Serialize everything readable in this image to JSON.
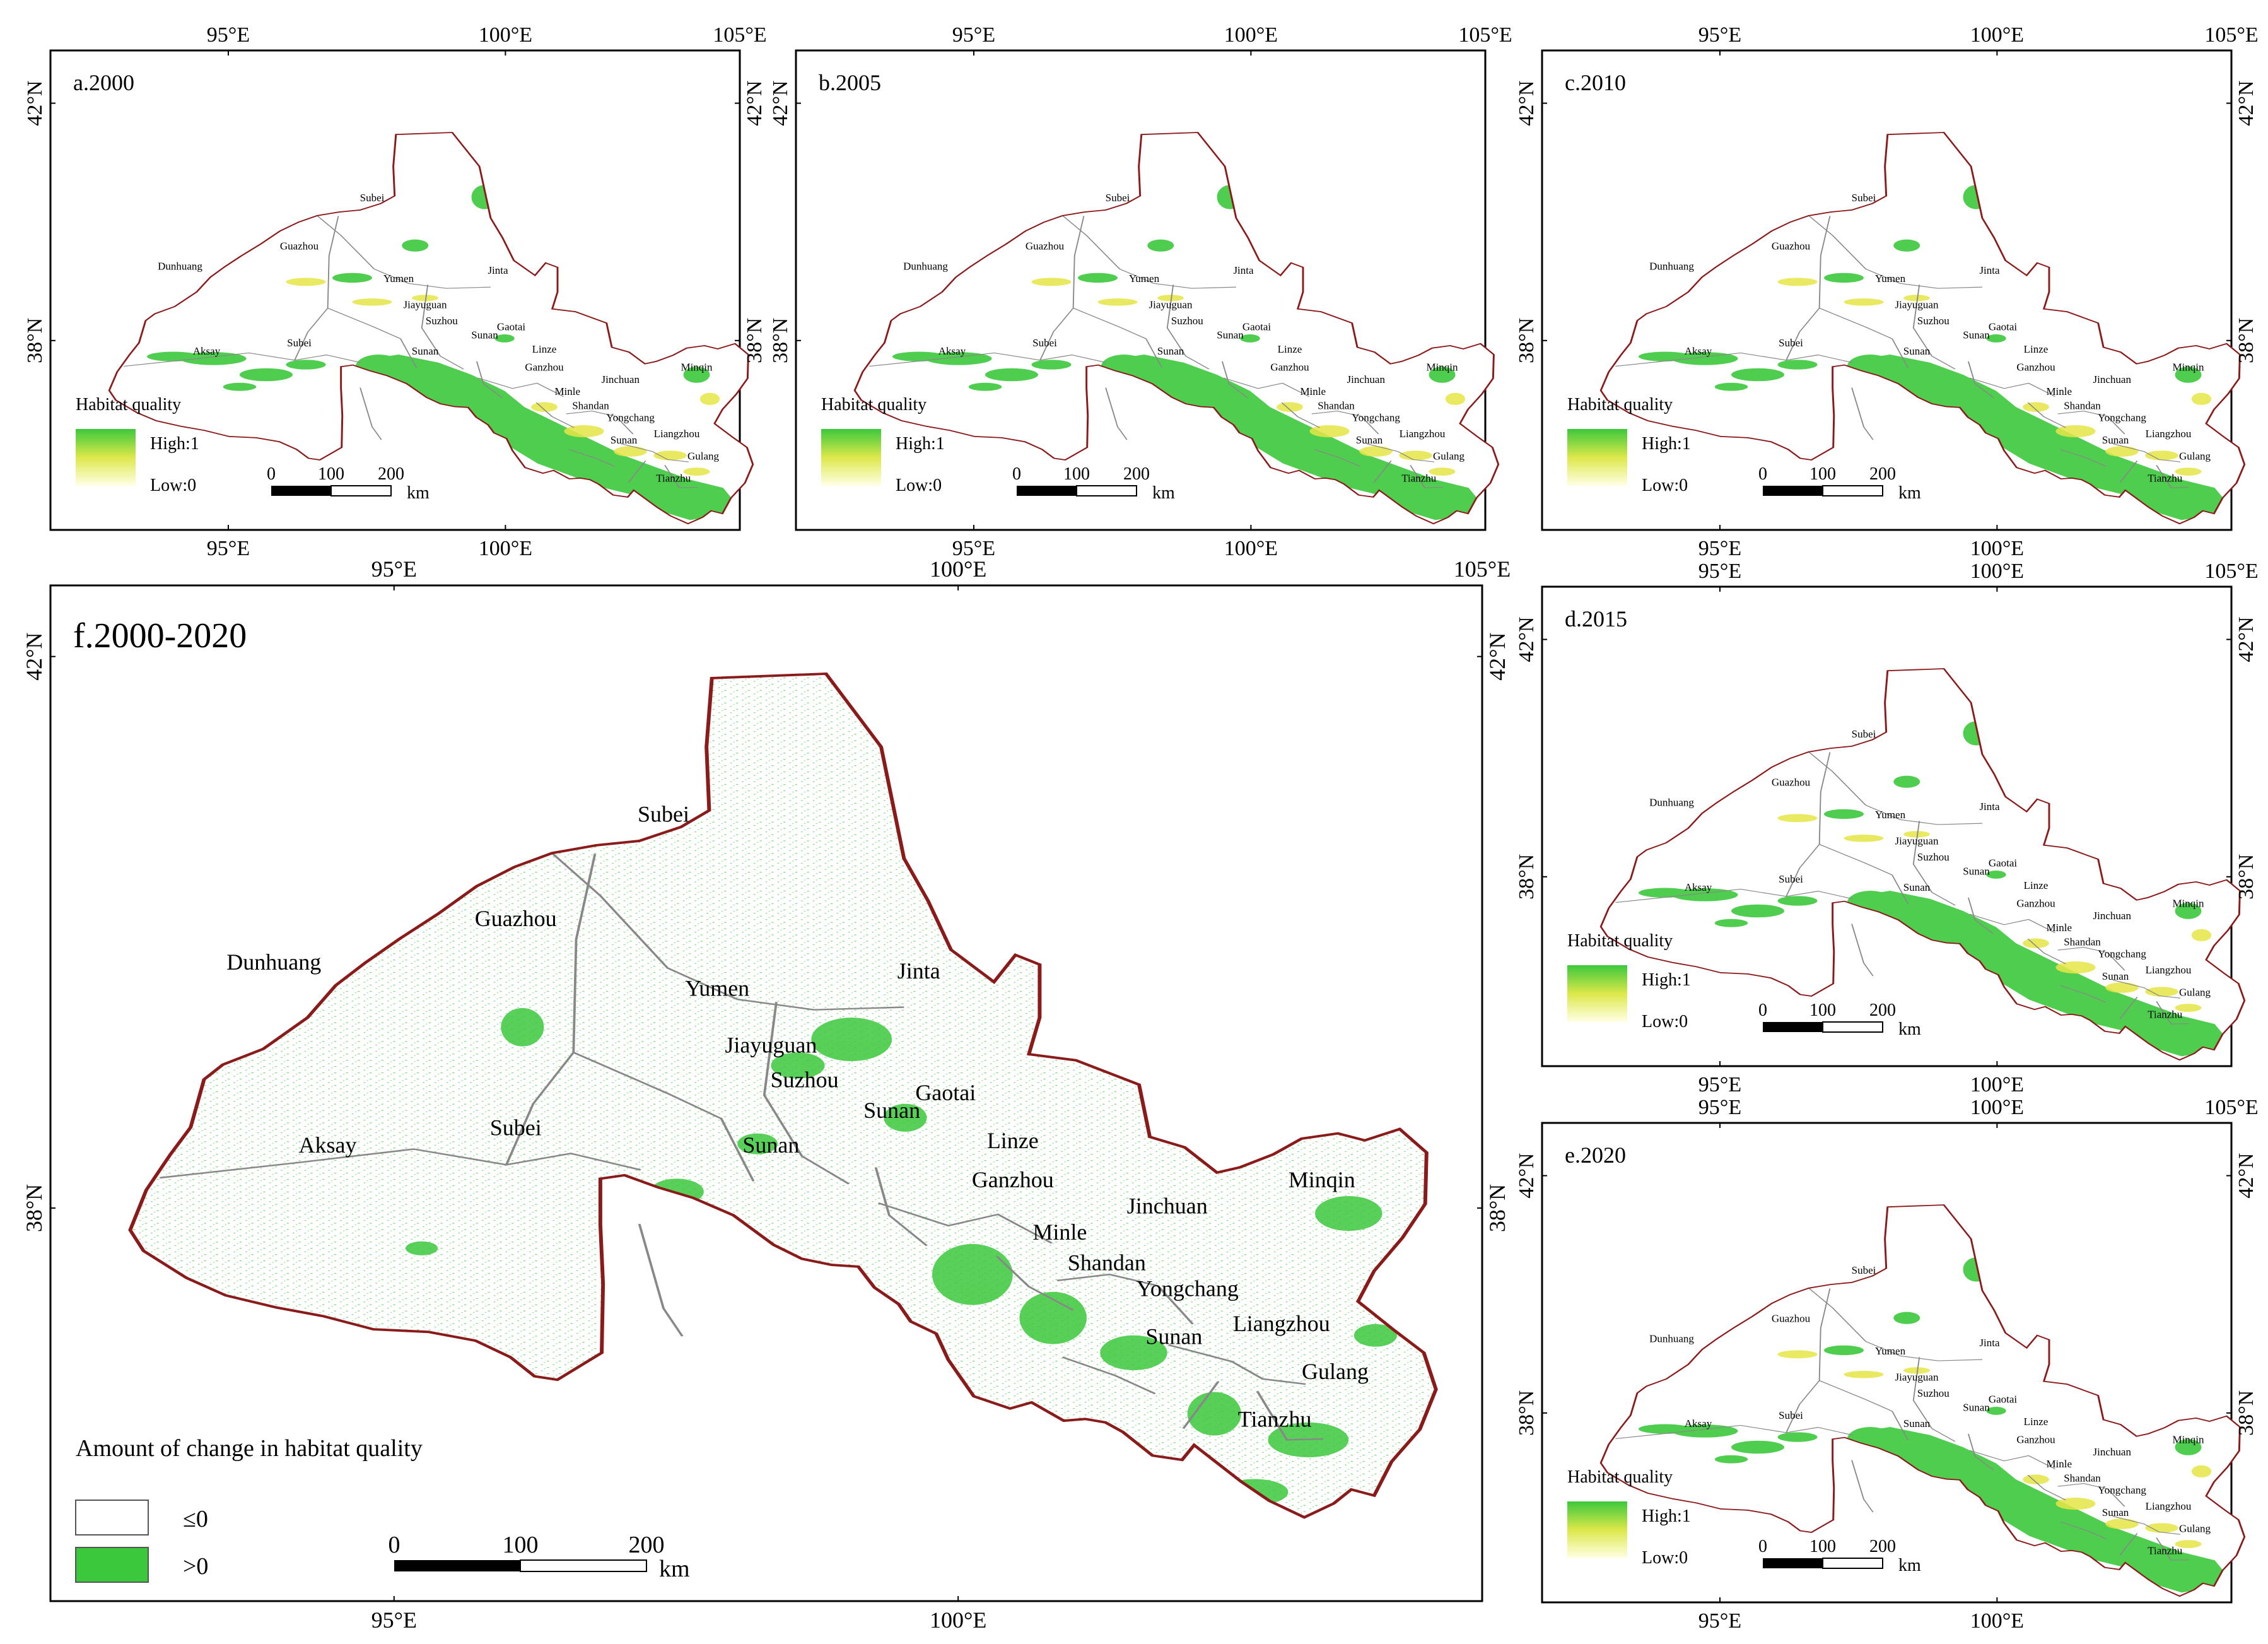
{
  "panels": [
    {
      "id": "a",
      "label": "a.2000",
      "type": "quality",
      "top_ticks": [
        "95°E",
        "100°E",
        "105°E"
      ],
      "bottom_ticks": [
        "95°E",
        "100°E"
      ],
      "left_ticks": [
        "42°N",
        "38°N"
      ],
      "right_ticks": [
        "42°N",
        "38°N"
      ]
    },
    {
      "id": "b",
      "label": "b.2005",
      "type": "quality",
      "top_ticks": [
        "95°E",
        "100°E",
        "105°E"
      ],
      "bottom_ticks": [
        "95°E",
        "100°E"
      ],
      "left_ticks": [
        "42°N",
        "38°N"
      ],
      "right_ticks": []
    },
    {
      "id": "c",
      "label": "c.2010",
      "type": "quality",
      "top_ticks": [
        "95°E",
        "100°E",
        "105°E"
      ],
      "bottom_ticks": [
        "95°E",
        "100°E"
      ],
      "left_ticks": [
        "42°N",
        "38°N"
      ],
      "right_ticks": [
        "42°N",
        "38°N"
      ]
    },
    {
      "id": "d",
      "label": "d.2015",
      "type": "quality",
      "top_ticks": [
        "95°E",
        "100°E",
        "105°E"
      ],
      "bottom_ticks": [
        "95°E",
        "100°E"
      ],
      "left_ticks": [
        "42°N",
        "38°N"
      ],
      "right_ticks": [
        "42°N",
        "38°N"
      ]
    },
    {
      "id": "e",
      "label": "e.2020",
      "type": "quality",
      "top_ticks": [
        "95°E",
        "100°E",
        "105°E"
      ],
      "bottom_ticks": [
        "95°E",
        "100°E"
      ],
      "left_ticks": [
        "42°N",
        "38°N"
      ],
      "right_ticks": [
        "42°N",
        "38°N"
      ]
    },
    {
      "id": "f",
      "label": "f.2000-2020",
      "type": "change",
      "top_ticks": [
        "95°E",
        "100°E",
        "105°E"
      ],
      "bottom_ticks": [
        "95°E",
        "100°E"
      ],
      "left_ticks": [
        "42°N",
        "38°N"
      ],
      "right_ticks": [
        "42°N",
        "38°N"
      ]
    }
  ],
  "place_names": [
    "Subei",
    "Guazhou",
    "Dunhuang",
    "Yumen",
    "Jinta",
    "Jiayuguan",
    "Suzhou",
    "Subei",
    "Sunan",
    "Sunan",
    "Gaotai",
    "Linze",
    "Aksay",
    "Ganzhou",
    "Jinchuan",
    "Minqin",
    "Minle",
    "Shandan",
    "Yongchang",
    "Sunan",
    "Liangzhou",
    "Gulang",
    "Tianzhu"
  ],
  "legend_quality": {
    "title": "Habitat quality",
    "high": "High:1",
    "low": "Low:0"
  },
  "legend_change": {
    "title": "Amount of change in habitat quality",
    "le0": "≤0",
    "gt0": ">0"
  },
  "scalebar": {
    "ticks": [
      "0",
      "100",
      "200"
    ],
    "unit": "km"
  },
  "colors": {
    "green": "#3cc83c",
    "dark_green": "#2db52d",
    "yellow": "#e6e646",
    "boundary": "#8b1a1a",
    "county": "#888888",
    "frame": "#000000"
  }
}
